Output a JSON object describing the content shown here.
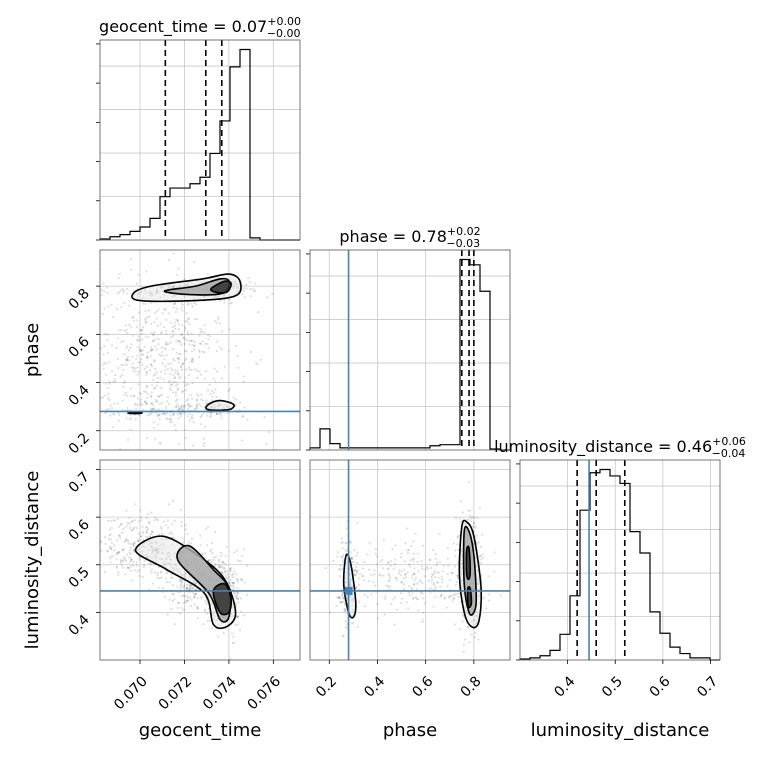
{
  "chart_data": {
    "type": "corner",
    "truth_color": "#4682b4",
    "parameters": [
      {
        "name": "geocent_time",
        "range": [
          0.0682,
          0.0772
        ],
        "ticks": [
          "0.070",
          "0.072",
          "0.074",
          "0.076"
        ],
        "tick_values": [
          0.07,
          0.072,
          0.074,
          0.076
        ],
        "median": 0.07296,
        "lower": 0.07114,
        "upper": 0.07368
      },
      {
        "name": "phase",
        "range": [
          0.12,
          0.95
        ],
        "ticks": [
          "0.2",
          "0.4",
          "0.6",
          "0.8"
        ],
        "tick_values": [
          0.2,
          0.4,
          0.6,
          0.8
        ],
        "truth": 0.28,
        "median": 0.78,
        "lower": 0.75,
        "upper": 0.8
      },
      {
        "name": "luminosity_distance",
        "range": [
          0.3,
          0.72
        ],
        "ticks": [
          "0.4",
          "0.5",
          "0.6",
          "0.7"
        ],
        "tick_values": [
          0.4,
          0.5,
          0.6,
          0.7
        ],
        "truth": 0.445,
        "median": 0.46,
        "lower": 0.42,
        "upper": 0.52
      }
    ],
    "titles": [
      {
        "param": "geocent_time",
        "label": "geocent_time = 0.07",
        "plus": "+0.00",
        "minus": "−0.00"
      },
      {
        "param": "phase",
        "label": "phase = 0.78",
        "plus": "+0.02",
        "minus": "−0.03"
      },
      {
        "param": "luminosity_distance",
        "label": "luminosity_distance = 0.46",
        "plus": "+0.06",
        "minus": "−0.04"
      }
    ],
    "histograms": {
      "geocent_time": {
        "edges_start": 0.0682,
        "bin_width": 0.00045,
        "counts": [
          1,
          3,
          5,
          8,
          12,
          20,
          40,
          48,
          48,
          52,
          58,
          80,
          110,
          160,
          176,
          2,
          0,
          0,
          0,
          0
        ]
      },
      "phase": {
        "edges_start": 0.12,
        "bin_width": 0.0415,
        "counts": [
          2,
          20,
          6,
          2,
          2,
          2,
          2,
          2,
          2,
          2,
          2,
          2,
          4,
          5,
          5,
          180,
          175,
          150,
          1,
          0
        ]
      },
      "luminosity_distance": {
        "edges_start": 0.3,
        "bin_width": 0.021,
        "counts": [
          1,
          2,
          4,
          9,
          24,
          60,
          140,
          175,
          178,
          172,
          165,
          120,
          100,
          45,
          25,
          12,
          6,
          2,
          2,
          0
        ]
      }
    },
    "panels_2d": [
      {
        "x": "geocent_time",
        "y": "phase",
        "clusters": [
          {
            "cx": 0.0718,
            "cy": 0.785,
            "sx": 0.0016,
            "sy": 0.02,
            "n": 150
          },
          {
            "cx": 0.0735,
            "cy": 0.79,
            "sx": 0.0008,
            "sy": 0.02,
            "n": 120
          },
          {
            "cx": 0.071,
            "cy": 0.5,
            "sx": 0.0016,
            "sy": 0.17,
            "n": 600
          },
          {
            "cx": 0.0715,
            "cy": 0.28,
            "sx": 0.002,
            "sy": 0.02,
            "n": 120
          },
          {
            "cx": 0.0733,
            "cy": 0.3,
            "sx": 0.0006,
            "sy": 0.02,
            "n": 60
          }
        ],
        "contours": [
          {
            "level": "outer",
            "points": [
              [
                0.0697,
                0.77
              ],
              [
                0.0705,
                0.8
              ],
              [
                0.0728,
                0.83
              ],
              [
                0.074,
                0.85
              ],
              [
                0.0745,
                0.82
              ],
              [
                0.0743,
                0.76
              ],
              [
                0.0725,
                0.74
              ],
              [
                0.07,
                0.74
              ]
            ]
          },
          {
            "level": "mid",
            "points": [
              [
                0.0711,
                0.78
              ],
              [
                0.0725,
                0.8
              ],
              [
                0.0736,
                0.83
              ],
              [
                0.074,
                0.82
              ],
              [
                0.0737,
                0.77
              ],
              [
                0.0722,
                0.765
              ]
            ]
          },
          {
            "level": "inner",
            "points": [
              [
                0.0732,
                0.79
              ],
              [
                0.0738,
                0.82
              ],
              [
                0.0741,
                0.81
              ],
              [
                0.0739,
                0.775
              ],
              [
                0.0734,
                0.775
              ]
            ]
          },
          {
            "level": "outer",
            "points": [
              [
                0.073,
                0.29
              ],
              [
                0.0731,
                0.31
              ],
              [
                0.0736,
                0.325
              ],
              [
                0.0742,
                0.31
              ],
              [
                0.0741,
                0.29
              ],
              [
                0.0736,
                0.285
              ]
            ]
          },
          {
            "level": "outer",
            "points": [
              [
                0.06945,
                0.273
              ],
              [
                0.0698,
                0.276
              ],
              [
                0.0701,
                0.274
              ],
              [
                0.0698,
                0.271
              ]
            ]
          }
        ]
      },
      {
        "x": "geocent_time",
        "y": "luminosity_distance",
        "clusters": [
          {
            "cx": 0.07,
            "cy": 0.54,
            "sx": 0.0012,
            "sy": 0.035,
            "n": 350
          },
          {
            "cx": 0.0725,
            "cy": 0.47,
            "sx": 0.0008,
            "sy": 0.03,
            "n": 400
          },
          {
            "cx": 0.0738,
            "cy": 0.43,
            "sx": 0.0004,
            "sy": 0.035,
            "n": 300
          }
        ],
        "contours": [
          {
            "level": "outer",
            "points": [
              [
                0.0698,
                0.53
              ],
              [
                0.071,
                0.56
              ],
              [
                0.0726,
                0.52
              ],
              [
                0.0738,
                0.47
              ],
              [
                0.0743,
                0.4
              ],
              [
                0.0739,
                0.37
              ],
              [
                0.0733,
                0.375
              ],
              [
                0.0729,
                0.44
              ],
              [
                0.0712,
                0.49
              ]
            ]
          },
          {
            "level": "mid",
            "points": [
              [
                0.0717,
                0.51
              ],
              [
                0.0722,
                0.54
              ],
              [
                0.0733,
                0.49
              ],
              [
                0.074,
                0.45
              ],
              [
                0.074,
                0.39
              ],
              [
                0.0736,
                0.385
              ],
              [
                0.0731,
                0.44
              ]
            ]
          },
          {
            "level": "inner",
            "points": [
              [
                0.0733,
                0.445
              ],
              [
                0.0738,
                0.46
              ],
              [
                0.0741,
                0.43
              ],
              [
                0.074,
                0.4
              ],
              [
                0.0736,
                0.4
              ]
            ]
          }
        ]
      },
      {
        "x": "phase",
        "y": "luminosity_distance",
        "clusters": [
          {
            "cx": 0.28,
            "cy": 0.46,
            "sx": 0.02,
            "sy": 0.05,
            "n": 180
          },
          {
            "cx": 0.78,
            "cy": 0.48,
            "sx": 0.025,
            "sy": 0.06,
            "n": 450
          },
          {
            "cx": 0.55,
            "cy": 0.47,
            "sx": 0.15,
            "sy": 0.04,
            "n": 250
          }
        ],
        "contours": [
          {
            "level": "outer",
            "points": [
              [
                0.27,
                0.52
              ],
              [
                0.29,
                0.5
              ],
              [
                0.31,
                0.42
              ],
              [
                0.3,
                0.39
              ],
              [
                0.28,
                0.4
              ],
              [
                0.26,
                0.46
              ]
            ]
          },
          {
            "level": "outer",
            "points": [
              [
                0.75,
                0.58
              ],
              [
                0.77,
                0.59
              ],
              [
                0.8,
                0.56
              ],
              [
                0.83,
                0.45
              ],
              [
                0.82,
                0.38
              ],
              [
                0.79,
                0.37
              ],
              [
                0.76,
                0.4
              ],
              [
                0.74,
                0.48
              ]
            ]
          },
          {
            "level": "mid",
            "points": [
              [
                0.76,
                0.57
              ],
              [
                0.78,
                0.57
              ],
              [
                0.8,
                0.52
              ],
              [
                0.81,
                0.43
              ],
              [
                0.8,
                0.4
              ],
              [
                0.78,
                0.4
              ],
              [
                0.76,
                0.46
              ]
            ]
          },
          {
            "level": "inner",
            "points": [
              [
                0.77,
                0.53
              ],
              [
                0.78,
                0.535
              ],
              [
                0.785,
                0.49
              ],
              [
                0.78,
                0.47
              ],
              [
                0.77,
                0.48
              ]
            ]
          },
          {
            "level": "inner",
            "points": [
              [
                0.775,
                0.45
              ],
              [
                0.785,
                0.45
              ],
              [
                0.79,
                0.42
              ],
              [
                0.78,
                0.41
              ],
              [
                0.775,
                0.42
              ]
            ]
          }
        ]
      }
    ]
  }
}
